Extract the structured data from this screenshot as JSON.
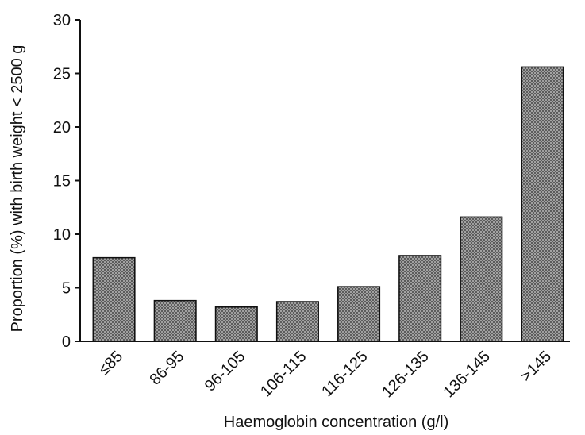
{
  "chart_data": {
    "type": "bar",
    "title": "",
    "xlabel": "Haemoglobin concentration (g/l)",
    "ylabel": "Proportion (%) with birth weight < 2500 g",
    "categories": [
      "≤85",
      "86-95",
      "96-105",
      "106-115",
      "116-125",
      "126-135",
      "136-145",
      ">145"
    ],
    "values": [
      7.8,
      3.8,
      3.2,
      3.7,
      5.1,
      8.0,
      11.6,
      25.6
    ],
    "ylim": [
      0,
      30
    ],
    "yticks": [
      0,
      5,
      10,
      15,
      20,
      25,
      30
    ],
    "grid": false,
    "legend": "none",
    "bar_pattern": "crosshatch-grey"
  }
}
